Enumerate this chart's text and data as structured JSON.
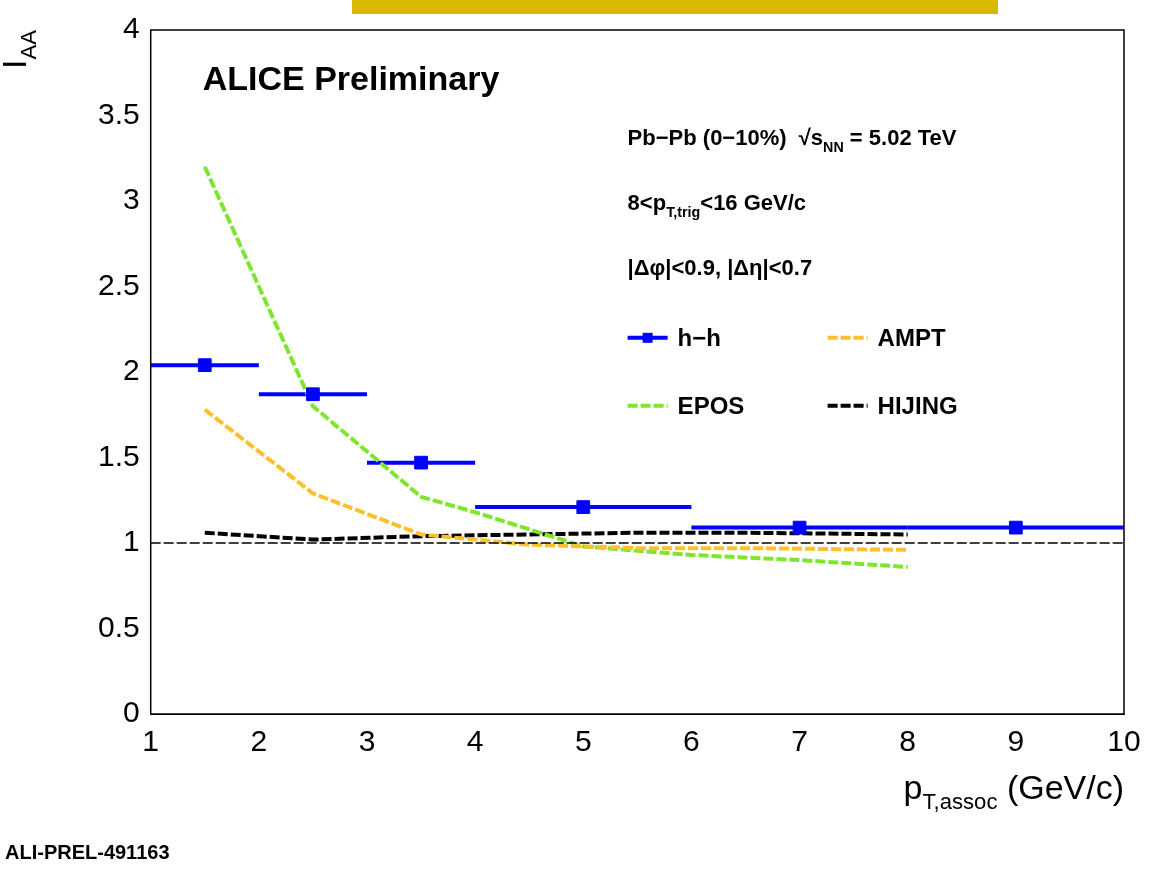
{
  "chart_data": {
    "type": "line",
    "xlabel": "p$_{T,assoc}$ (GeV/c)",
    "ylabel": "I$_{AA}$",
    "xlim": [
      1,
      10
    ],
    "xticks": [
      1,
      2,
      3,
      4,
      5,
      6,
      7,
      8,
      9,
      10
    ],
    "ylim": [
      0,
      4
    ],
    "yticks": [
      0,
      0.5,
      1,
      1.5,
      2,
      2.5,
      3,
      3.5,
      4
    ],
    "grid": false,
    "legend": "right",
    "series": [
      {
        "name": "h−h",
        "type": "scatter",
        "marker": "square",
        "color": "#0000ff",
        "x": [
          1.5,
          2.5,
          3.5,
          5,
          7,
          9
        ],
        "values": [
          2.04,
          1.87,
          1.47,
          1.21,
          1.09,
          1.09
        ],
        "errors": [
          0.02,
          0.02,
          0.02,
          0.02,
          0.02,
          0.03
        ],
        "xerrors": [
          0.5,
          0.5,
          0.5,
          1,
          1,
          1
        ]
      },
      {
        "name": "AMPT",
        "line_style": "dashed",
        "color": "#fbc02d",
        "x": [
          1.5,
          2.5,
          3.5,
          4.5,
          5.5,
          6.5,
          8
        ],
        "values": [
          1.78,
          1.29,
          1.05,
          0.99,
          0.97,
          0.97,
          0.96
        ]
      },
      {
        "name": "EPOS",
        "line_style": "dashed",
        "color": "#7fe630",
        "x": [
          1.5,
          2.5,
          3.5,
          4,
          5,
          6,
          7,
          8
        ],
        "values": [
          3.2,
          1.8,
          1.27,
          1.18,
          0.98,
          0.93,
          0.9,
          0.86
        ]
      },
      {
        "name": "HIJING",
        "line_style": "dashed",
        "color": "#000000",
        "x": [
          1.5,
          2.5,
          3.5,
          4.5,
          5.5,
          6.5,
          8
        ],
        "values": [
          1.06,
          1.02,
          1.04,
          1.05,
          1.06,
          1.06,
          1.05
        ]
      }
    ],
    "ref_lines": [
      {
        "axis": "y",
        "value": 1,
        "color": "#000000",
        "line_style": "dashed"
      }
    ],
    "annotations": [
      "ALICE Preliminary",
      "Pb−Pb (0−10%)  √s$_{NN}$ = 5.02 TeV",
      "8<p$_{T,trig}$<16 GeV/c",
      "|Δφ|<0.9, |Δη|<0.7",
      "ALI-PREL-491163"
    ]
  }
}
